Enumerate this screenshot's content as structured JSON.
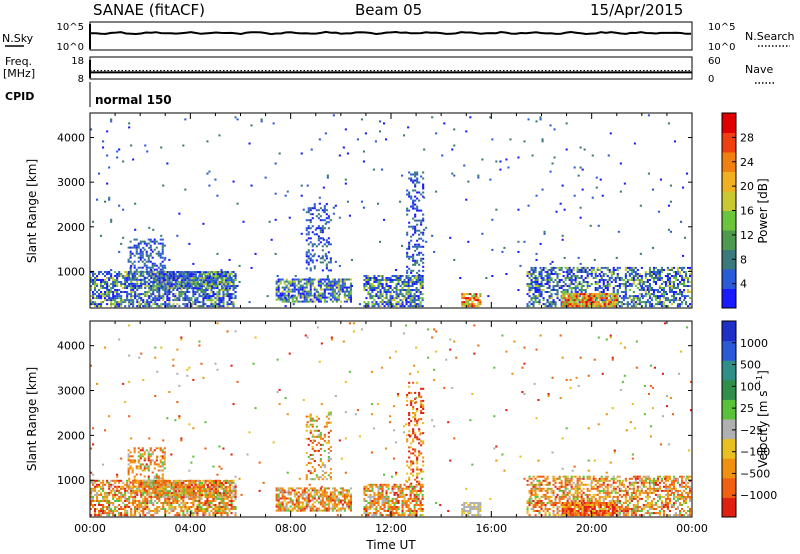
{
  "header": {
    "station": "SANAE (fitACF)",
    "beam": "Beam 05",
    "date": "15/Apr/2015"
  },
  "nsky_panel": {
    "left_label": "N.Sky",
    "left_ticks": [
      "10^5",
      "10^0"
    ],
    "right_ticks": [
      "10^5",
      "10^0"
    ],
    "right_label": "N.Search",
    "right_legend_style": "dotted"
  },
  "freq_panel": {
    "left_label_line1": "Freq.",
    "left_label_line2": "[MHz]",
    "left_ticks": [
      "18",
      "8"
    ],
    "right_ticks": [
      "60",
      "0"
    ],
    "right_label": "Nave",
    "right_legend_style": "dotted",
    "freq_mhz": 11,
    "nave": 23
  },
  "cpid": {
    "label": "CPID",
    "mode": "normal 150"
  },
  "chart_data": [
    {
      "type": "heatmap",
      "panel": "power",
      "ylabel": "Slant Range [km]",
      "ylim": [
        180,
        4550
      ],
      "yticks": [
        1000,
        2000,
        3000,
        4000
      ],
      "xlim": [
        0,
        24
      ],
      "x_ticks": [
        "00:00",
        "04:00",
        "08:00",
        "12:00",
        "16:00",
        "20:00",
        "00:00"
      ],
      "colorbar": {
        "label": "Power [dB]",
        "range": [
          0,
          32
        ],
        "ticks": [
          "4",
          "8",
          "12",
          "16",
          "20",
          "24",
          "28"
        ],
        "colors": [
          "#1a1aff",
          "#2a5bd8",
          "#3b7a7a",
          "#4e9a4e",
          "#6bc53c",
          "#c8c832",
          "#f0b020",
          "#f08010",
          "#ee4010",
          "#e00000"
        ]
      },
      "regions": [
        {
          "t0": 0.0,
          "t1": 5.8,
          "r0": 200,
          "r1": 1000,
          "density": 0.65,
          "color": "power_mid"
        },
        {
          "t0": 1.5,
          "t1": 3.0,
          "r0": 700,
          "r1": 1700,
          "density": 0.45,
          "color": "power_low"
        },
        {
          "t0": 2.5,
          "t1": 5.6,
          "r0": 600,
          "r1": 1000,
          "density": 0.75,
          "color": "power_mid"
        },
        {
          "t0": 7.4,
          "t1": 10.4,
          "r0": 300,
          "r1": 800,
          "density": 0.7,
          "color": "power_mid"
        },
        {
          "t0": 8.6,
          "t1": 9.6,
          "r0": 1000,
          "r1": 2500,
          "density": 0.3,
          "color": "power_low"
        },
        {
          "t0": 10.9,
          "t1": 13.3,
          "r0": 200,
          "r1": 900,
          "density": 0.65,
          "color": "power_mid"
        },
        {
          "t0": 12.6,
          "t1": 13.3,
          "r0": 900,
          "r1": 3200,
          "density": 0.3,
          "color": "power_low"
        },
        {
          "t0": 14.8,
          "t1": 15.6,
          "r0": 200,
          "r1": 500,
          "density": 0.8,
          "color": "power_high"
        },
        {
          "t0": 17.4,
          "t1": 23.9,
          "r0": 200,
          "r1": 1100,
          "density": 0.55,
          "color": "power_mid"
        },
        {
          "t0": 18.8,
          "t1": 21.0,
          "r0": 200,
          "r1": 500,
          "density": 0.85,
          "color": "power_high"
        },
        {
          "t0": 0.0,
          "t1": 24.0,
          "r0": 200,
          "r1": 4500,
          "density": 0.012,
          "color": "power_low"
        }
      ]
    },
    {
      "type": "heatmap",
      "panel": "velocity",
      "ylabel": "Slant Range [km]",
      "ylim": [
        180,
        4550
      ],
      "yticks": [
        1000,
        2000,
        3000,
        4000
      ],
      "xlim": [
        0,
        24
      ],
      "x_ticks": [
        "00:00",
        "04:00",
        "08:00",
        "12:00",
        "16:00",
        "20:00",
        "00:00"
      ],
      "xlabel": "Time UT",
      "colorbar": {
        "label": "Velocity [m s^-1]",
        "ticks": [
          "1000",
          "500",
          "100",
          "25",
          "−25",
          "−100",
          "−500",
          "−1000"
        ],
        "colors": [
          "#1f30c8",
          "#2a5ad8",
          "#2f8f86",
          "#2f8f4a",
          "#58c33a",
          "#b0b0b0",
          "#e8c020",
          "#f09010",
          "#f06010",
          "#e02010"
        ]
      },
      "regions": [
        {
          "t0": 0.0,
          "t1": 5.8,
          "r0": 200,
          "r1": 1000,
          "density": 0.65,
          "color": "vel_neg"
        },
        {
          "t0": 1.5,
          "t1": 3.0,
          "r0": 700,
          "r1": 1700,
          "density": 0.45,
          "color": "vel_neg"
        },
        {
          "t0": 2.5,
          "t1": 5.6,
          "r0": 600,
          "r1": 1000,
          "density": 0.75,
          "color": "vel_neg"
        },
        {
          "t0": 7.4,
          "t1": 10.4,
          "r0": 300,
          "r1": 800,
          "density": 0.7,
          "color": "vel_neg"
        },
        {
          "t0": 8.6,
          "t1": 9.6,
          "r0": 1000,
          "r1": 2500,
          "density": 0.3,
          "color": "vel_neg"
        },
        {
          "t0": 10.9,
          "t1": 13.3,
          "r0": 200,
          "r1": 900,
          "density": 0.65,
          "color": "vel_neg"
        },
        {
          "t0": 12.6,
          "t1": 13.3,
          "r0": 900,
          "r1": 3200,
          "density": 0.3,
          "color": "vel_strong"
        },
        {
          "t0": 14.8,
          "t1": 15.6,
          "r0": 200,
          "r1": 500,
          "density": 0.8,
          "color": "vel_zero"
        },
        {
          "t0": 17.4,
          "t1": 23.9,
          "r0": 200,
          "r1": 1100,
          "density": 0.55,
          "color": "vel_neg"
        },
        {
          "t0": 18.8,
          "t1": 21.0,
          "r0": 200,
          "r1": 500,
          "density": 0.85,
          "color": "vel_strong"
        },
        {
          "t0": 0.0,
          "t1": 24.0,
          "r0": 200,
          "r1": 4500,
          "density": 0.012,
          "color": "vel_neg"
        }
      ]
    }
  ]
}
